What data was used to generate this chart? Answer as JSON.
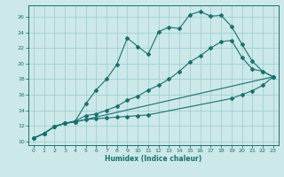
{
  "xlabel": "Humidex (Indice chaleur)",
  "xlim": [
    -0.5,
    23.5
  ],
  "ylim": [
    9.5,
    27.5
  ],
  "yticks": [
    10,
    12,
    14,
    16,
    18,
    20,
    22,
    24,
    26
  ],
  "xticks": [
    0,
    1,
    2,
    3,
    4,
    5,
    6,
    7,
    8,
    9,
    10,
    11,
    12,
    13,
    14,
    15,
    16,
    17,
    18,
    19,
    20,
    21,
    22,
    23
  ],
  "background_color": "#cce8e8",
  "grid_color": "#99cccc",
  "line_color": "#1a7070",
  "line1_x": [
    0,
    1,
    2,
    3,
    4,
    23
  ],
  "line1_y": [
    10.4,
    11.0,
    11.9,
    12.3,
    12.5,
    18.3
  ],
  "line2_x": [
    0,
    1,
    2,
    3,
    4,
    5,
    6,
    7,
    8,
    9,
    10,
    11,
    12,
    13,
    14,
    15,
    16,
    17,
    18,
    19,
    20,
    21,
    22,
    23
  ],
  "line2_y": [
    10.4,
    11.0,
    11.9,
    12.3,
    12.6,
    14.8,
    16.6,
    18.0,
    19.9,
    23.3,
    22.2,
    21.2,
    24.1,
    24.7,
    24.5,
    26.3,
    26.7,
    26.1,
    26.2,
    24.8,
    22.5,
    20.3,
    19.0,
    18.3
  ],
  "line3_x": [
    0,
    1,
    2,
    3,
    4,
    5,
    6,
    7,
    8,
    9,
    10,
    11,
    19,
    20,
    21,
    22,
    23
  ],
  "line3_y": [
    10.4,
    11.0,
    11.9,
    12.3,
    12.5,
    12.8,
    12.9,
    13.0,
    13.1,
    13.2,
    13.3,
    13.4,
    15.5,
    16.0,
    16.5,
    17.2,
    18.3
  ],
  "line4_x": [
    0,
    1,
    2,
    3,
    4,
    5,
    6,
    7,
    8,
    9,
    10,
    11,
    12,
    13,
    14,
    15,
    16,
    17,
    18,
    19,
    20,
    21,
    22,
    23
  ],
  "line4_y": [
    10.4,
    11.0,
    11.9,
    12.3,
    12.6,
    13.3,
    13.5,
    14.0,
    14.5,
    15.3,
    15.8,
    16.6,
    17.2,
    18.0,
    19.0,
    20.2,
    21.0,
    22.0,
    22.8,
    23.0,
    20.8,
    19.3,
    19.0,
    18.3
  ]
}
